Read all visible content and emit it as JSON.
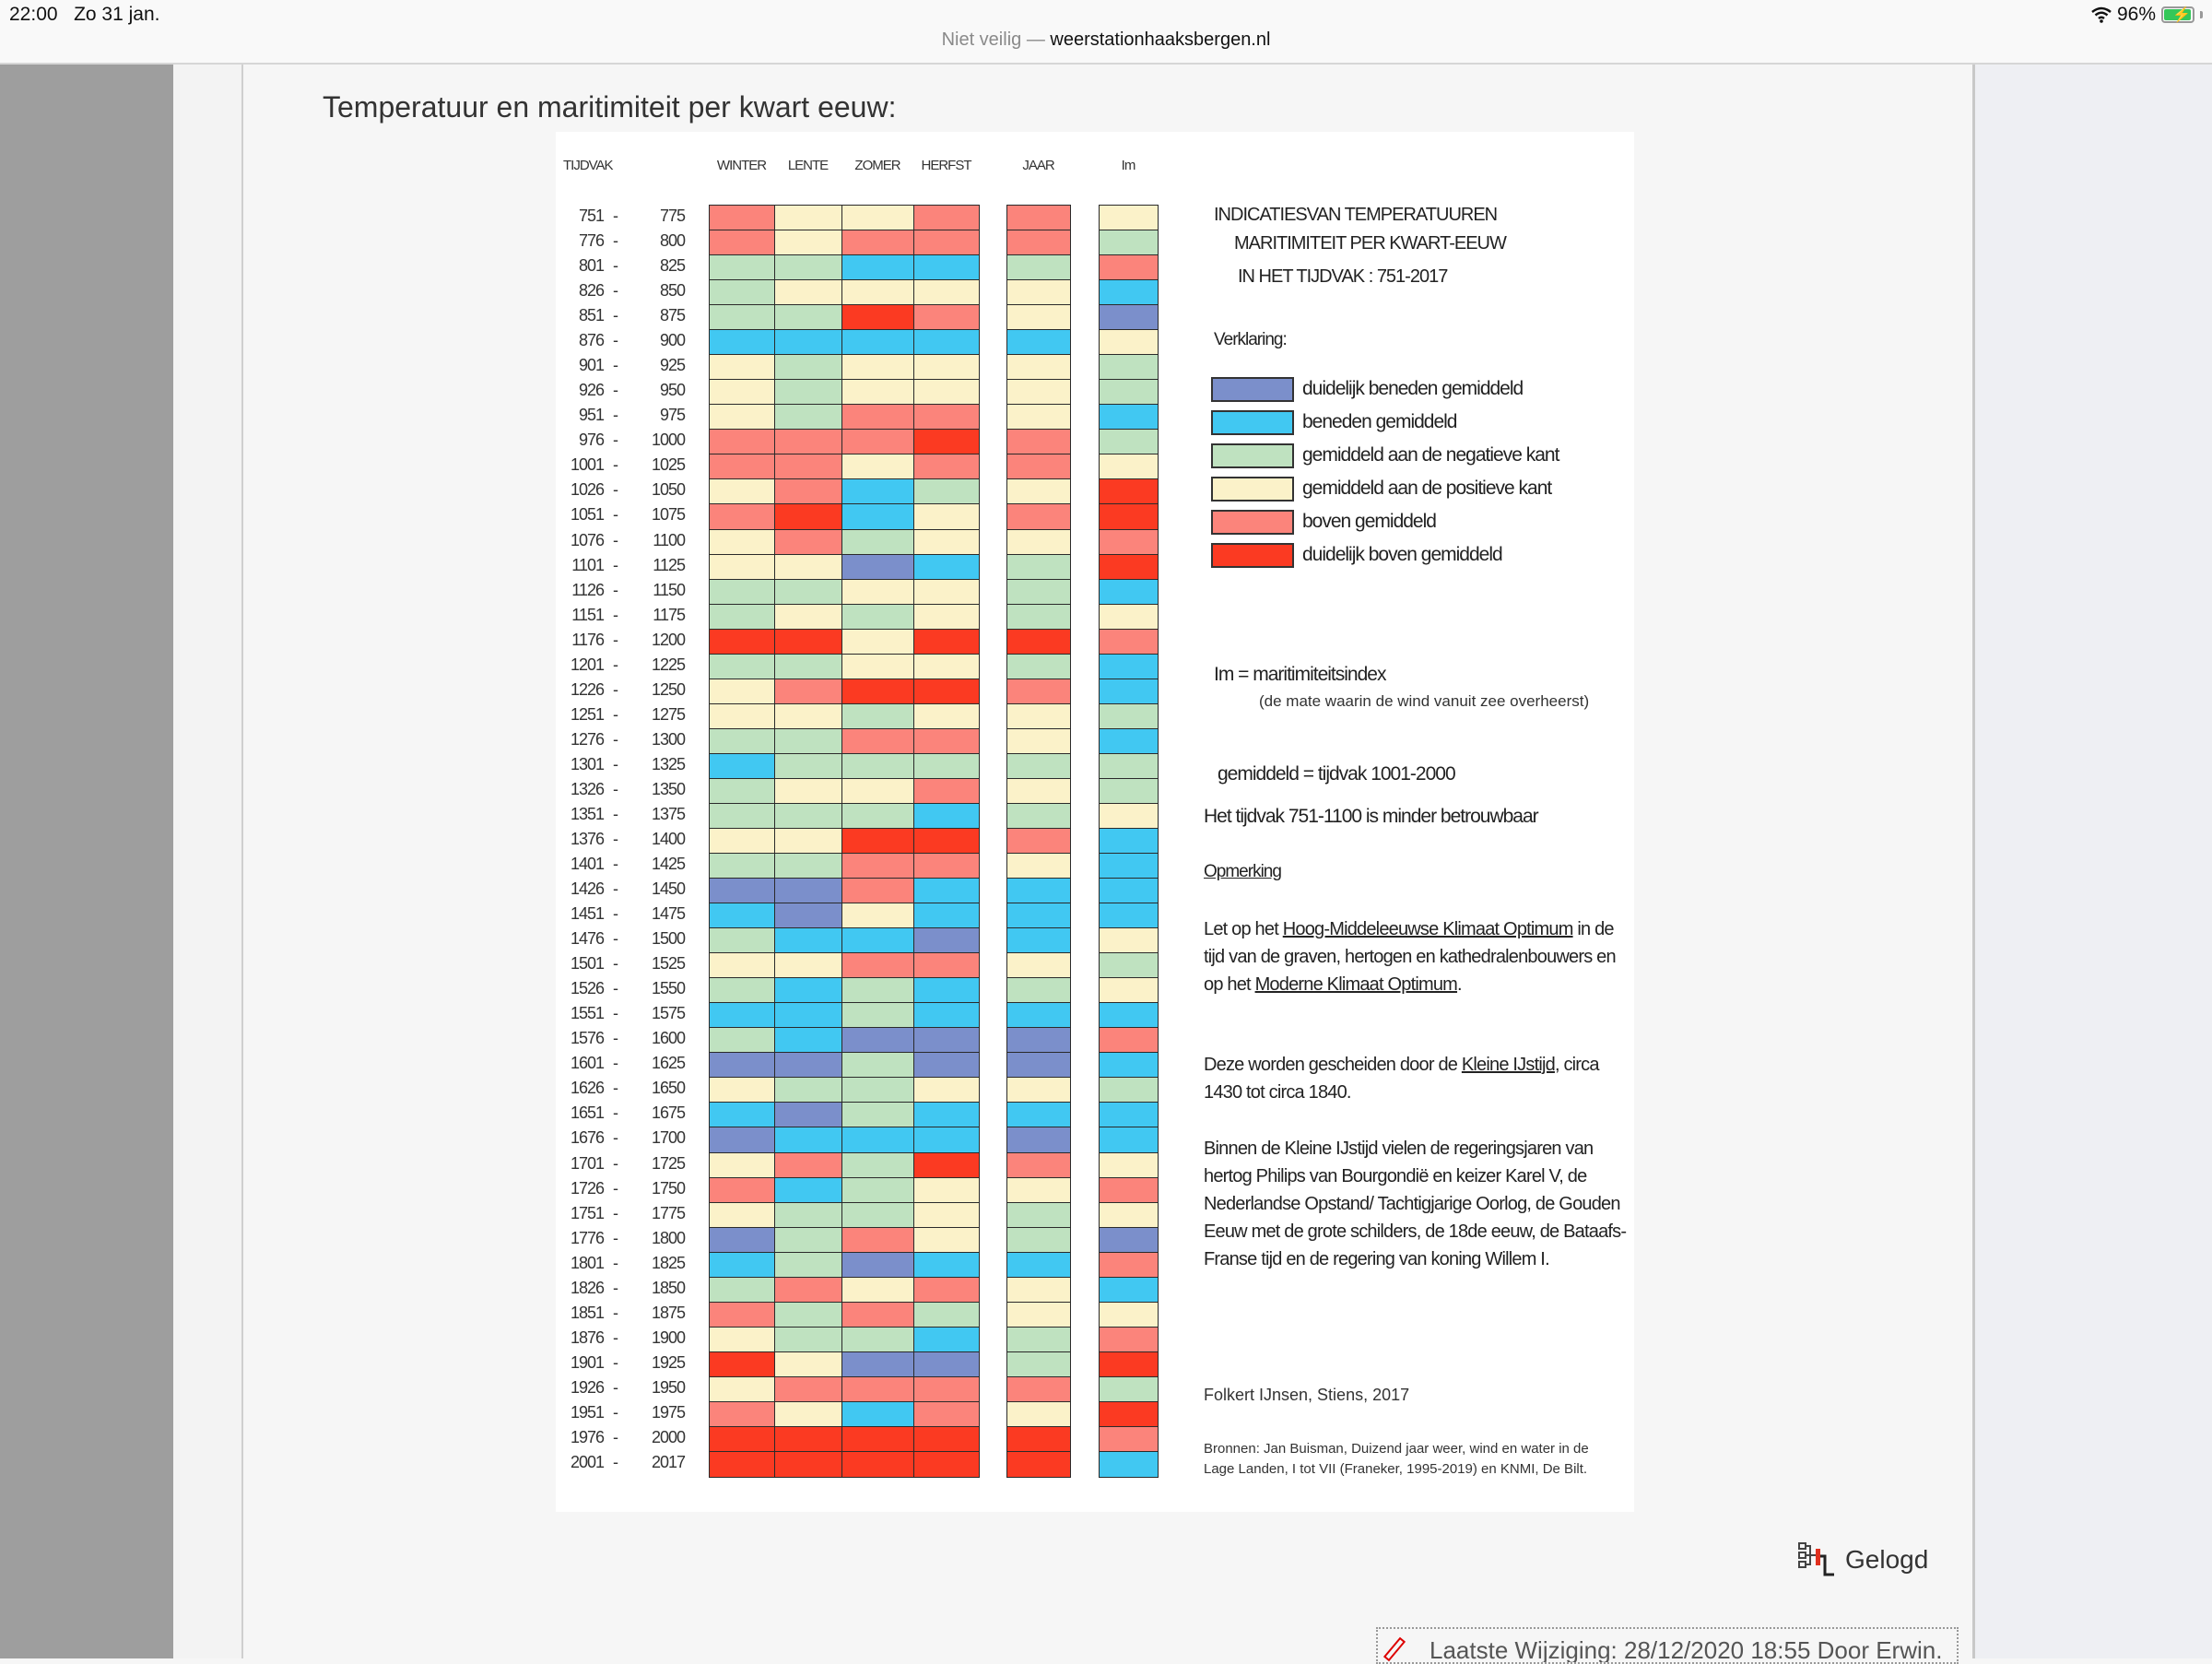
{
  "statusbar": {
    "time": "22:00",
    "date": "Zo 31 jan.",
    "battery": "96%",
    "battery_level": 0.96,
    "url_insecure": "Niet veilig —",
    "url_domain": "weerstationhaaksbergen.nl"
  },
  "page": {
    "title": "Temperatuur en maritimiteit per kwart eeuw:",
    "gelogd": "Gelogd",
    "laatste_wijziging": "Laatste Wijziging: 28/12/2020 18:55 Door Erwin."
  },
  "chart_data": {
    "type": "heatmap",
    "title": "INDICATIES VAN TEMPERATUUR EN MARITIMITEIT PER KWART-EEUW IN HET TIJDVAK: 751-2017",
    "title_lines": [
      "INDICATIESVAN TEMPERATUUREN",
      "MARITIMITEIT PER KWART-EEUW",
      "IN HET TIJDVAK : 751-2017"
    ],
    "row_header": "TIJDVAK",
    "columns": [
      "WINTER",
      "LENTE",
      "ZOMER",
      "HERFST",
      "JAAR",
      "Im"
    ],
    "legend_title": "Verklaring:",
    "legend": [
      {
        "code": "B",
        "label": "duidelijk beneden gemiddeld",
        "color": "#7b8fcb"
      },
      {
        "code": "b",
        "label": "beneden gemiddeld",
        "color": "#41c8f2"
      },
      {
        "code": "g",
        "label": "gemiddeld aan de negatieve kant",
        "color": "#bfe2c0"
      },
      {
        "code": "y",
        "label": "gemiddeld aan de positieve kant",
        "color": "#fbf2c9"
      },
      {
        "code": "r",
        "label": "boven gemiddeld",
        "color": "#fb847b"
      },
      {
        "code": "R",
        "label": "duidelijk boven gemiddeld",
        "color": "#fb3a22"
      }
    ],
    "rows": [
      {
        "from": "751",
        "to": "775",
        "v": [
          "r",
          "y",
          "y",
          "r",
          "r",
          "y"
        ]
      },
      {
        "from": "776",
        "to": "800",
        "v": [
          "r",
          "y",
          "r",
          "r",
          "r",
          "g"
        ]
      },
      {
        "from": "801",
        "to": "825",
        "v": [
          "g",
          "g",
          "b",
          "b",
          "g",
          "r"
        ]
      },
      {
        "from": "826",
        "to": "850",
        "v": [
          "g",
          "y",
          "y",
          "y",
          "y",
          "b"
        ]
      },
      {
        "from": "851",
        "to": "875",
        "v": [
          "g",
          "g",
          "R",
          "r",
          "y",
          "B"
        ]
      },
      {
        "from": "876",
        "to": "900",
        "v": [
          "b",
          "b",
          "b",
          "b",
          "b",
          "y"
        ]
      },
      {
        "from": "901",
        "to": "925",
        "v": [
          "y",
          "g",
          "y",
          "y",
          "y",
          "g"
        ]
      },
      {
        "from": "926",
        "to": "950",
        "v": [
          "y",
          "g",
          "y",
          "y",
          "y",
          "g"
        ]
      },
      {
        "from": "951",
        "to": "975",
        "v": [
          "y",
          "g",
          "r",
          "r",
          "y",
          "b"
        ]
      },
      {
        "from": "976",
        "to": "1000",
        "v": [
          "r",
          "r",
          "r",
          "R",
          "r",
          "g"
        ]
      },
      {
        "from": "1001",
        "to": "1025",
        "v": [
          "r",
          "r",
          "y",
          "r",
          "r",
          "y"
        ]
      },
      {
        "from": "1026",
        "to": "1050",
        "v": [
          "y",
          "r",
          "b",
          "g",
          "y",
          "R"
        ]
      },
      {
        "from": "1051",
        "to": "1075",
        "v": [
          "r",
          "R",
          "b",
          "y",
          "r",
          "R"
        ]
      },
      {
        "from": "1076",
        "to": "1100",
        "v": [
          "y",
          "r",
          "g",
          "y",
          "y",
          "r"
        ]
      },
      {
        "from": "1101",
        "to": "1125",
        "v": [
          "y",
          "y",
          "B",
          "b",
          "g",
          "R"
        ]
      },
      {
        "from": "1126",
        "to": "1150",
        "v": [
          "g",
          "g",
          "y",
          "y",
          "g",
          "b"
        ]
      },
      {
        "from": "1151",
        "to": "1175",
        "v": [
          "g",
          "y",
          "g",
          "y",
          "g",
          "y"
        ]
      },
      {
        "from": "1176",
        "to": "1200",
        "v": [
          "R",
          "R",
          "y",
          "R",
          "R",
          "r"
        ]
      },
      {
        "from": "1201",
        "to": "1225",
        "v": [
          "g",
          "g",
          "y",
          "y",
          "g",
          "b"
        ]
      },
      {
        "from": "1226",
        "to": "1250",
        "v": [
          "y",
          "r",
          "R",
          "R",
          "r",
          "b"
        ]
      },
      {
        "from": "1251",
        "to": "1275",
        "v": [
          "y",
          "y",
          "g",
          "y",
          "y",
          "g"
        ]
      },
      {
        "from": "1276",
        "to": "1300",
        "v": [
          "g",
          "g",
          "r",
          "r",
          "y",
          "b"
        ]
      },
      {
        "from": "1301",
        "to": "1325",
        "v": [
          "b",
          "g",
          "g",
          "g",
          "g",
          "g"
        ]
      },
      {
        "from": "1326",
        "to": "1350",
        "v": [
          "g",
          "y",
          "y",
          "r",
          "y",
          "g"
        ]
      },
      {
        "from": "1351",
        "to": "1375",
        "v": [
          "g",
          "g",
          "g",
          "b",
          "g",
          "y"
        ]
      },
      {
        "from": "1376",
        "to": "1400",
        "v": [
          "y",
          "y",
          "R",
          "R",
          "r",
          "b"
        ]
      },
      {
        "from": "1401",
        "to": "1425",
        "v": [
          "g",
          "g",
          "r",
          "r",
          "y",
          "b"
        ]
      },
      {
        "from": "1426",
        "to": "1450",
        "v": [
          "B",
          "B",
          "r",
          "b",
          "b",
          "b"
        ]
      },
      {
        "from": "1451",
        "to": "1475",
        "v": [
          "b",
          "B",
          "y",
          "b",
          "b",
          "b"
        ]
      },
      {
        "from": "1476",
        "to": "1500",
        "v": [
          "g",
          "b",
          "b",
          "B",
          "b",
          "y"
        ]
      },
      {
        "from": "1501",
        "to": "1525",
        "v": [
          "y",
          "y",
          "r",
          "r",
          "y",
          "g"
        ]
      },
      {
        "from": "1526",
        "to": "1550",
        "v": [
          "g",
          "b",
          "g",
          "b",
          "g",
          "y"
        ]
      },
      {
        "from": "1551",
        "to": "1575",
        "v": [
          "b",
          "b",
          "g",
          "b",
          "b",
          "b"
        ]
      },
      {
        "from": "1576",
        "to": "1600",
        "v": [
          "g",
          "b",
          "B",
          "B",
          "B",
          "r"
        ]
      },
      {
        "from": "1601",
        "to": "1625",
        "v": [
          "B",
          "B",
          "g",
          "B",
          "B",
          "b"
        ]
      },
      {
        "from": "1626",
        "to": "1650",
        "v": [
          "y",
          "g",
          "g",
          "y",
          "y",
          "g"
        ]
      },
      {
        "from": "1651",
        "to": "1675",
        "v": [
          "b",
          "B",
          "g",
          "b",
          "b",
          "b"
        ]
      },
      {
        "from": "1676",
        "to": "1700",
        "v": [
          "B",
          "b",
          "b",
          "b",
          "B",
          "b"
        ]
      },
      {
        "from": "1701",
        "to": "1725",
        "v": [
          "y",
          "r",
          "g",
          "R",
          "r",
          "y"
        ]
      },
      {
        "from": "1726",
        "to": "1750",
        "v": [
          "r",
          "b",
          "g",
          "y",
          "y",
          "r"
        ]
      },
      {
        "from": "1751",
        "to": "1775",
        "v": [
          "y",
          "g",
          "g",
          "y",
          "g",
          "y"
        ]
      },
      {
        "from": "1776",
        "to": "1800",
        "v": [
          "B",
          "g",
          "r",
          "y",
          "g",
          "B"
        ]
      },
      {
        "from": "1801",
        "to": "1825",
        "v": [
          "b",
          "g",
          "B",
          "b",
          "b",
          "r"
        ]
      },
      {
        "from": "1826",
        "to": "1850",
        "v": [
          "g",
          "r",
          "y",
          "r",
          "y",
          "b"
        ]
      },
      {
        "from": "1851",
        "to": "1875",
        "v": [
          "r",
          "g",
          "r",
          "g",
          "y",
          "y"
        ]
      },
      {
        "from": "1876",
        "to": "1900",
        "v": [
          "y",
          "g",
          "g",
          "b",
          "g",
          "r"
        ]
      },
      {
        "from": "1901",
        "to": "1925",
        "v": [
          "R",
          "y",
          "B",
          "B",
          "g",
          "R"
        ]
      },
      {
        "from": "1926",
        "to": "1950",
        "v": [
          "y",
          "r",
          "r",
          "r",
          "r",
          "g"
        ]
      },
      {
        "from": "1951",
        "to": "1975",
        "v": [
          "r",
          "y",
          "b",
          "r",
          "y",
          "R"
        ]
      },
      {
        "from": "1976",
        "to": "2000",
        "v": [
          "R",
          "R",
          "R",
          "R",
          "R",
          "r"
        ]
      },
      {
        "from": "2001",
        "to": "2017",
        "v": [
          "R",
          "R",
          "R",
          "R",
          "R",
          "b"
        ]
      }
    ],
    "notes": {
      "im_def": "Im = maritimiteitsindex",
      "im_explain": "(de mate waarin de wind vanuit zee overheerst)",
      "gemiddeld": "gemiddeld = tijdvak 1001-2000",
      "betrouwbaar": "Het tijdvak 751-1100 is minder betrouwbaar",
      "opmerking": "Opmerking",
      "p1_a": "Let op het ",
      "p1_link1": "Hoog-Middeleeuwse Klimaat Optimum",
      "p1_b": " in de tijd van de graven, hertogen en kathedralenbouwers en op het ",
      "p1_link2": "Moderne Klimaat Optimum",
      "p1_c": ".",
      "p2_a": "Deze worden gescheiden door de ",
      "p2_link": "Kleine IJstijd",
      "p2_b": ", circa 1430 tot circa 1840.",
      "p3": "Binnen de Kleine IJstijd vielen de regeringsjaren van hertog Philips van Bourgondië en keizer Karel V, de Nederlandse Opstand/ Tachtigjarige Oorlog, de Gouden Eeuw met de grote schilders, de 18de eeuw, de Bataafs-Franse tijd en de regering van koning Willem I.",
      "author": "Folkert IJnsen, Stiens, 2017",
      "bronnen": "Bronnen: Jan Buisman, Duizend jaar weer, wind en water in de Lage Landen, I tot VII (Franeker, 1995-2019) en KNMI, De Bilt."
    }
  }
}
